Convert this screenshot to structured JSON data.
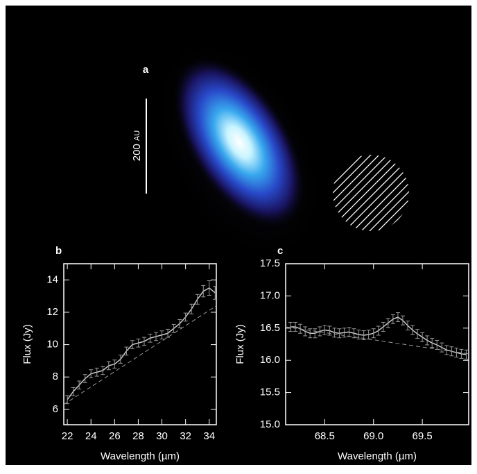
{
  "image_panel": {
    "label": "a",
    "scale_value": "200",
    "scale_unit": "AU"
  },
  "chart_data": [
    {
      "type": "line",
      "panel_label": "b",
      "xlabel": "Wavelength (µm)",
      "ylabel": "Flux (Jy)",
      "x": [
        22,
        22.5,
        23,
        23.5,
        24,
        24.5,
        25,
        25.5,
        26,
        26.5,
        27,
        27.5,
        28,
        28.5,
        29,
        29.5,
        30,
        30.5,
        31,
        31.5,
        32,
        32.5,
        33,
        33.5,
        34,
        34.5
      ],
      "series": [
        {
          "color": "#cccccc",
          "values": [
            6.6,
            7.1,
            7.5,
            7.9,
            8.2,
            8.3,
            8.4,
            8.7,
            8.8,
            9.1,
            9.6,
            10.0,
            10.1,
            10.2,
            10.4,
            10.5,
            10.6,
            10.7,
            11.0,
            11.3,
            11.7,
            12.2,
            12.8,
            13.3,
            13.5,
            13.2
          ],
          "errors": [
            0.25,
            0.25,
            0.25,
            0.25,
            0.25,
            0.25,
            0.25,
            0.25,
            0.25,
            0.25,
            0.25,
            0.25,
            0.25,
            0.25,
            0.25,
            0.25,
            0.25,
            0.25,
            0.25,
            0.25,
            0.25,
            0.3,
            0.3,
            0.35,
            0.45,
            0.4
          ]
        },
        {
          "color": "#999999",
          "dashed": true,
          "x": [
            21.7,
            34.6
          ],
          "values": [
            6.3,
            12.4
          ]
        }
      ],
      "xlim": [
        21.7,
        34.6
      ],
      "ylim": [
        5.05,
        15
      ],
      "xticks": [
        22,
        24,
        26,
        28,
        30,
        32,
        34
      ],
      "yticks": [
        6,
        8,
        10,
        12,
        14
      ]
    },
    {
      "type": "line",
      "panel_label": "c",
      "xlabel": "Wavelength (µm)",
      "ylabel": "Flux (Jy)",
      "x": [
        68.15,
        68.2,
        68.25,
        68.3,
        68.35,
        68.4,
        68.45,
        68.5,
        68.55,
        68.6,
        68.65,
        68.7,
        68.75,
        68.8,
        68.85,
        68.9,
        68.95,
        69.0,
        69.05,
        69.1,
        69.15,
        69.2,
        69.25,
        69.3,
        69.35,
        69.4,
        69.45,
        69.5,
        69.55,
        69.6,
        69.65,
        69.7,
        69.75,
        69.8,
        69.85,
        69.9,
        69.95
      ],
      "series": [
        {
          "color": "#cccccc",
          "values": [
            16.52,
            16.52,
            16.49,
            16.45,
            16.42,
            16.42,
            16.45,
            16.47,
            16.46,
            16.43,
            16.42,
            16.43,
            16.44,
            16.42,
            16.4,
            16.39,
            16.4,
            16.42,
            16.46,
            16.52,
            16.58,
            16.64,
            16.67,
            16.62,
            16.54,
            16.47,
            16.41,
            16.36,
            16.31,
            16.27,
            16.24,
            16.2,
            16.16,
            16.14,
            16.12,
            16.1,
            16.09
          ],
          "errors": [
            0.07,
            0.07,
            0.07,
            0.07,
            0.07,
            0.07,
            0.07,
            0.07,
            0.07,
            0.07,
            0.07,
            0.07,
            0.07,
            0.07,
            0.07,
            0.07,
            0.07,
            0.07,
            0.07,
            0.07,
            0.07,
            0.07,
            0.07,
            0.07,
            0.07,
            0.07,
            0.07,
            0.07,
            0.07,
            0.07,
            0.07,
            0.07,
            0.07,
            0.07,
            0.07,
            0.07,
            0.07
          ]
        },
        {
          "color": "#999999",
          "dashed": true,
          "x": [
            68.1,
            69.975
          ],
          "values": [
            16.52,
            16.1
          ]
        }
      ],
      "xlim": [
        68.1,
        69.975
      ],
      "ylim": [
        15.0,
        17.5
      ],
      "xticks": [
        68.5,
        {
          "value": 69,
          "label": "69.0"
        },
        69.5
      ],
      "yticks": [
        {
          "value": 15,
          "label": "15.0"
        },
        15.5,
        {
          "value": 16,
          "label": "16.0"
        },
        16.5,
        {
          "value": 17,
          "label": "17.0"
        },
        17.5
      ]
    }
  ]
}
